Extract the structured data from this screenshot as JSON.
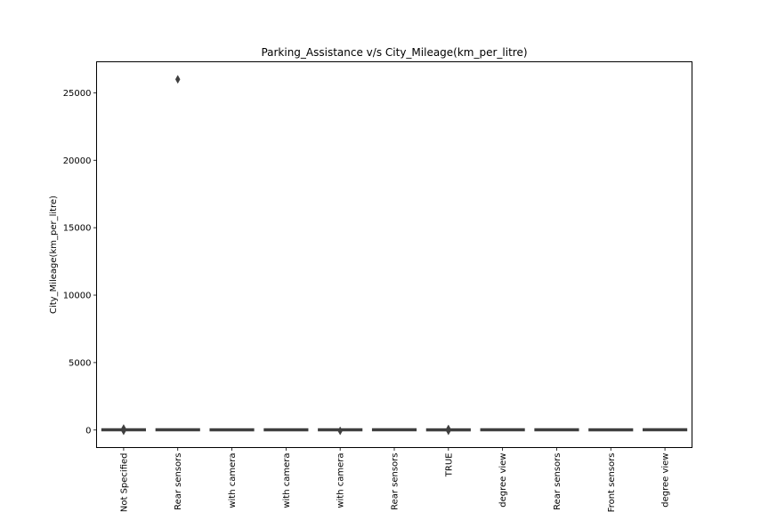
{
  "chart_data": {
    "type": "box",
    "title": "Parking_Assistance v/s City_Mileage(km_per_litre)",
    "xlabel": "",
    "ylabel": "City_Mileage(km_per_litre)",
    "ylim": [
      -1300,
      27300
    ],
    "yticks": [
      0,
      5000,
      10000,
      15000,
      20000,
      25000
    ],
    "categories": [
      "Not Specified",
      "Rear sensors",
      "with camera",
      "with camera",
      "with camera",
      "Rear sensors",
      "TRUE",
      "degree view",
      "Rear sensors",
      "Front sensors",
      "degree view"
    ],
    "boxes": [
      {
        "q1": 10,
        "median": 15,
        "q3": 25,
        "whisker_low": 5,
        "whisker_high": 40,
        "outliers": [
          -60,
          110
        ]
      },
      {
        "q1": 12,
        "median": 16,
        "q3": 25,
        "whisker_low": 6,
        "whisker_high": 40,
        "outliers": [
          26000
        ]
      },
      {
        "q1": 10,
        "median": 14,
        "q3": 20,
        "whisker_low": 5,
        "whisker_high": 30,
        "outliers": []
      },
      {
        "q1": 10,
        "median": 15,
        "q3": 22,
        "whisker_low": 5,
        "whisker_high": 35,
        "outliers": []
      },
      {
        "q1": 12,
        "median": 15,
        "q3": 22,
        "whisker_low": 6,
        "whisker_high": 35,
        "outliers": [
          -60
        ]
      },
      {
        "q1": 15,
        "median": 18,
        "q3": 24,
        "whisker_low": 8,
        "whisker_high": 33,
        "outliers": []
      },
      {
        "q1": 8,
        "median": 12,
        "q3": 18,
        "whisker_low": 3,
        "whisker_high": 28,
        "outliers": [
          -60,
          80
        ]
      },
      {
        "q1": 12,
        "median": 16,
        "q3": 24,
        "whisker_low": 6,
        "whisker_high": 38,
        "outliers": []
      },
      {
        "q1": 12,
        "median": 16,
        "q3": 24,
        "whisker_low": 6,
        "whisker_high": 38,
        "outliers": []
      },
      {
        "q1": 10,
        "median": 13,
        "q3": 18,
        "whisker_low": 5,
        "whisker_high": 28,
        "outliers": []
      },
      {
        "q1": 15,
        "median": 18,
        "q3": 25,
        "whisker_low": 8,
        "whisker_high": 35,
        "outliers": []
      }
    ],
    "colors": {
      "boxes": [
        "#3274a1",
        "#e1812c",
        "#3a923a",
        "#c03d3e",
        "#9372b2",
        "#845b53",
        "#d684bd",
        "#7f7f7f",
        "#a9aa35",
        "#2eabb8",
        "#3274a1"
      ],
      "lines": "#3f3f3f",
      "axes": "#000000"
    },
    "grid": false,
    "legend": "none"
  }
}
